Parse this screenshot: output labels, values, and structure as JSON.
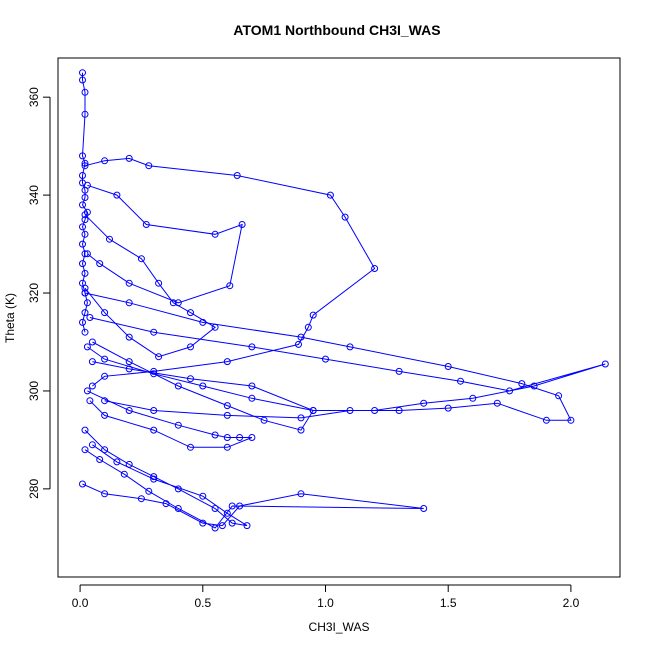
{
  "chart_data": {
    "type": "line",
    "title": "ATOM1 Northbound CH3I_WAS",
    "xlabel": "CH3I_WAS",
    "ylabel": "Theta (K)",
    "xlim": [
      -0.09,
      2.2
    ],
    "ylim": [
      262,
      368
    ],
    "x_ticks": [
      0.0,
      0.5,
      1.0,
      1.5,
      2.0
    ],
    "x_tick_labels": [
      "0.0",
      "0.5",
      "1.0",
      "1.5",
      "2.0"
    ],
    "y_ticks": [
      280,
      300,
      320,
      340,
      360
    ],
    "y_tick_labels": [
      "280",
      "300",
      "320",
      "340",
      "360"
    ],
    "grid": false,
    "legend": "none",
    "markers": "open-circle",
    "series_color": "#0000ff",
    "series": [
      {
        "x": [
          0.01,
          0.01,
          0.02,
          0.02,
          0.01,
          0.02,
          0.01,
          0.01,
          0.02,
          0.02,
          0.01,
          0.03,
          0.02,
          0.01,
          0.02,
          0.01,
          0.02,
          0.01,
          0.02,
          0.01,
          0.02,
          0.03,
          0.02,
          0.01,
          0.02
        ],
        "y": [
          365.0,
          363.5,
          361.0,
          356.5,
          348.0,
          346.5,
          344.0,
          342.5,
          341.0,
          339.5,
          338.0,
          336.5,
          335.0,
          333.5,
          332.0,
          330.0,
          328.0,
          326.0,
          324.0,
          322.0,
          320.0,
          318.0,
          316.0,
          314.0,
          312.0
        ]
      },
      {
        "x": [
          0.02,
          0.1,
          0.2,
          0.28,
          0.64,
          1.02,
          1.08,
          1.2,
          0.95,
          0.93,
          0.89,
          0.6,
          0.3,
          0.1,
          0.05
        ],
        "y": [
          346.0,
          347.0,
          347.5,
          346.0,
          344.0,
          340.0,
          335.5,
          325.0,
          315.5,
          313.0,
          309.5,
          306.0,
          304.0,
          303.0,
          301.0
        ]
      },
      {
        "x": [
          0.03,
          0.15,
          0.27,
          0.55,
          0.66,
          0.61,
          0.4,
          0.2,
          0.08,
          0.03
        ],
        "y": [
          342.0,
          340.0,
          334.0,
          332.0,
          334.0,
          321.5,
          318.0,
          322.0,
          326.0,
          328.0
        ]
      },
      {
        "x": [
          0.02,
          0.2,
          0.5,
          0.9,
          1.1,
          1.5,
          1.8,
          1.95,
          2.0,
          1.9,
          1.7,
          1.5,
          1.3,
          1.1,
          0.9,
          0.6,
          0.3,
          0.1
        ],
        "y": [
          320.0,
          318.0,
          314.0,
          311.0,
          309.0,
          305.0,
          301.5,
          299.0,
          294.0,
          294.0,
          297.5,
          296.5,
          296.0,
          296.0,
          294.5,
          295.0,
          296.0,
          298.0
        ]
      },
      {
        "x": [
          0.04,
          0.3,
          0.7,
          1.0,
          1.3,
          1.55,
          1.75,
          2.14,
          1.85,
          1.6,
          1.4,
          1.2,
          0.95,
          0.7,
          0.45,
          0.2,
          0.05
        ],
        "y": [
          315.0,
          312.0,
          309.0,
          306.5,
          304.0,
          302.0,
          300.0,
          305.5,
          301.0,
          298.5,
          297.5,
          296.0,
          296.0,
          301.0,
          302.5,
          304.5,
          306.0
        ]
      },
      {
        "x": [
          0.05,
          0.2,
          0.4,
          0.6,
          0.75,
          0.9,
          0.95,
          0.7,
          0.5,
          0.3,
          0.1,
          0.03
        ],
        "y": [
          310.0,
          306.0,
          301.0,
          297.0,
          294.0,
          292.0,
          296.0,
          298.5,
          301.0,
          303.5,
          306.5,
          309.0
        ]
      },
      {
        "x": [
          0.03,
          0.2,
          0.4,
          0.55,
          0.6,
          0.65,
          0.7,
          0.6,
          0.45,
          0.3,
          0.1,
          0.04
        ],
        "y": [
          300.0,
          296.0,
          293.0,
          291.0,
          290.5,
          290.5,
          290.5,
          288.5,
          288.5,
          292.0,
          295.0,
          298.0
        ]
      },
      {
        "x": [
          0.02,
          0.1,
          0.2,
          0.3,
          0.4,
          0.55,
          0.62,
          0.68,
          0.6,
          0.5,
          0.3,
          0.15,
          0.05
        ],
        "y": [
          292.0,
          288.0,
          285.0,
          282.5,
          280.0,
          276.0,
          273.0,
          272.5,
          275.0,
          278.5,
          282.0,
          285.5,
          289.0
        ]
      },
      {
        "x": [
          0.01,
          0.1,
          0.25,
          0.35,
          0.5,
          0.58,
          0.65,
          0.9,
          1.4,
          0.62,
          0.55,
          0.4,
          0.28,
          0.18,
          0.08,
          0.02
        ],
        "y": [
          281.0,
          279.0,
          278.0,
          277.0,
          273.0,
          272.5,
          276.5,
          279.0,
          276.0,
          276.5,
          272.0,
          276.0,
          279.5,
          283.0,
          286.0,
          288.0
        ]
      },
      {
        "x": [
          0.02,
          0.12,
          0.25,
          0.32,
          0.38,
          0.45,
          0.55,
          0.45,
          0.32,
          0.2,
          0.1,
          0.02
        ],
        "y": [
          336.0,
          331.0,
          327.0,
          322.0,
          318.0,
          316.0,
          313.0,
          309.0,
          307.0,
          311.0,
          316.0,
          321.0
        ]
      }
    ]
  }
}
